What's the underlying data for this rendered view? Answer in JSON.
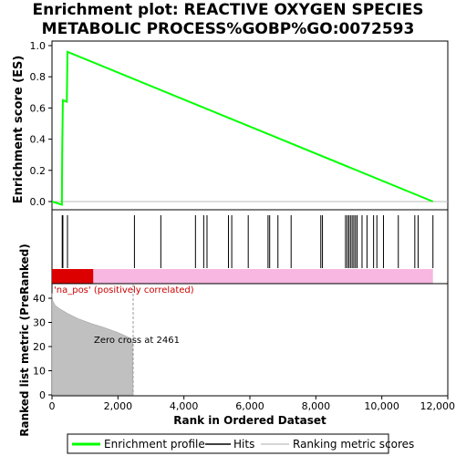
{
  "title_line1": "Enrichment plot: REACTIVE OXYGEN SPECIES",
  "title_line2": "METABOLIC PROCESS%GOBP%GO:0072593",
  "colors": {
    "profile": "#00ff00",
    "hits": "#000000",
    "metric_fill": "#c0c0c0",
    "heat_red": "#dd0000",
    "heat_pink": "#f7b7e1",
    "pos_label": "#cc0000"
  },
  "chart_data": [
    {
      "type": "line",
      "ylabel": "Enrichment score (ES)",
      "xlim": [
        0,
        12000
      ],
      "ylim": [
        -0.05,
        1.0
      ],
      "yticks": [
        "0.0",
        "0.2",
        "0.4",
        "0.6",
        "0.8",
        "1.0"
      ],
      "ytick_values": [
        0.0,
        0.2,
        0.4,
        0.6,
        0.8,
        1.0
      ],
      "series": [
        {
          "name": "Enrichment profile",
          "x": [
            0,
            300,
            310,
            330,
            450,
            470,
            11550
          ],
          "y": [
            0.0,
            -0.02,
            0.32,
            0.65,
            0.64,
            0.96,
            0.0
          ]
        }
      ]
    },
    {
      "type": "hits",
      "series_name": "Hits",
      "positions": [
        310,
        330,
        470,
        2500,
        3300,
        4350,
        4600,
        4700,
        5350,
        5450,
        5950,
        6550,
        6600,
        6850,
        7250,
        8150,
        8200,
        8900,
        8950,
        9000,
        9050,
        9100,
        9150,
        9200,
        9250,
        9400,
        9550,
        9750,
        9850,
        10050,
        10500,
        11000,
        11100,
        11550
      ]
    },
    {
      "type": "area",
      "ylabel": "Ranked list metric (PreRanked)",
      "xlabel": "Rank in Ordered Dataset",
      "series_name": "Ranking metric scores",
      "xlim": [
        0,
        12000
      ],
      "ylim": [
        0,
        45
      ],
      "xticks": [
        "0",
        "2,000",
        "4,000",
        "6,000",
        "8,000",
        "10,000",
        "12,000"
      ],
      "xtick_values": [
        0,
        2000,
        4000,
        6000,
        8000,
        10000,
        12000
      ],
      "yticks": [
        "0",
        "10",
        "20",
        "30",
        "40"
      ],
      "ytick_values": [
        0,
        10,
        20,
        30,
        40
      ],
      "x": [
        0,
        20,
        100,
        250,
        500,
        800,
        1200,
        1600,
        2000,
        2300,
        2440,
        2450,
        2461
      ],
      "y": [
        42,
        39,
        37,
        35.5,
        33.5,
        31.5,
        29.5,
        27.8,
        25.8,
        24.0,
        21.5,
        12,
        0
      ],
      "zero_cross_label": "Zero cross at 2461",
      "zero_cross": 2461,
      "pos_label": "'na_pos' (positively correlated)",
      "heat_red_end": 1250,
      "heat_gradient_end": 2400,
      "heat_end": 11550
    }
  ],
  "legend": {
    "profile_label": "Enrichment profile",
    "hits_label": "Hits",
    "metric_label": "Ranking metric scores"
  }
}
